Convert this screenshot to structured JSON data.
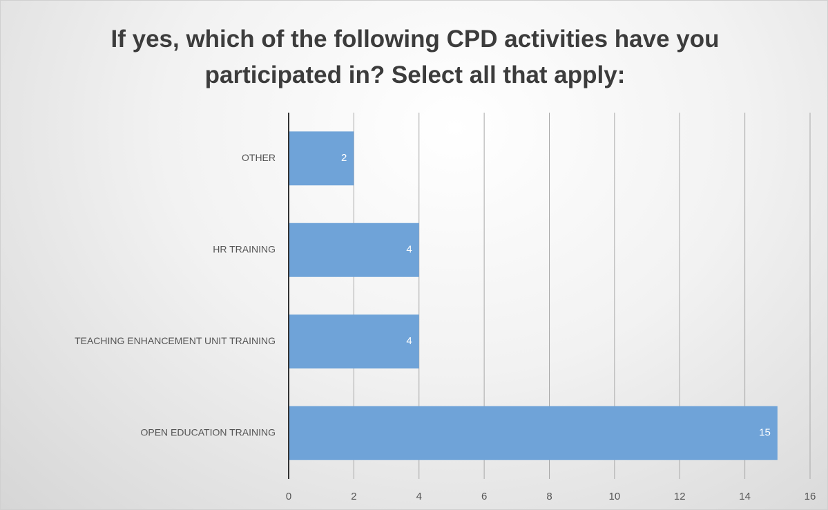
{
  "chart_data": {
    "type": "bar",
    "orientation": "horizontal",
    "title": "If yes, which of the following CPD activities have you participated in? Select all that apply:",
    "categories": [
      "OTHER",
      "HR TRAINING",
      "TEACHING ENHANCEMENT UNIT TRAINING",
      "OPEN EDUCATION TRAINING"
    ],
    "values": [
      2,
      4,
      4,
      15
    ],
    "color": "#6fa3d8",
    "xlim": [
      0,
      16
    ],
    "xticks": [
      0,
      2,
      4,
      6,
      8,
      10,
      12,
      14,
      16
    ],
    "grid": true
  }
}
